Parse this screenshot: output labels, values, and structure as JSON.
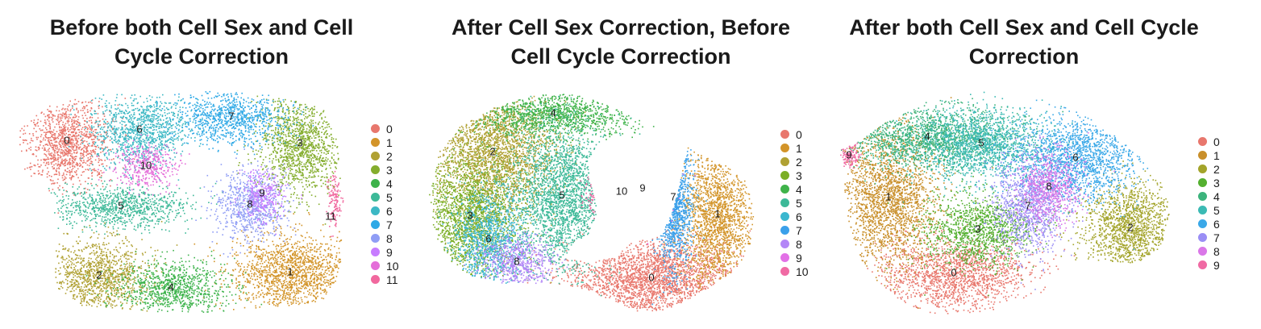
{
  "chart_data": [
    {
      "type": "scatter",
      "title": "Before both Cell Sex and Cell Cycle Correction",
      "title_lines": [
        "Before both Cell Sex and Cell",
        "Cycle Correction"
      ],
      "legend_position": "right",
      "grid": false,
      "axes": false,
      "series": [
        {
          "name": "0",
          "color": "#E8776D",
          "x": 83,
          "y": 175
        },
        {
          "name": "1",
          "color": "#D39429",
          "x": 360,
          "y": 338
        },
        {
          "name": "2",
          "color": "#B0A133",
          "x": 123,
          "y": 342
        },
        {
          "name": "3",
          "color": "#84AD2D",
          "x": 372,
          "y": 178
        },
        {
          "name": "4",
          "color": "#3DB34B",
          "x": 212,
          "y": 357
        },
        {
          "name": "5",
          "color": "#3DB998",
          "x": 150,
          "y": 256
        },
        {
          "name": "6",
          "color": "#3CB8C4",
          "x": 173,
          "y": 161
        },
        {
          "name": "7",
          "color": "#2FA9E6",
          "x": 287,
          "y": 145
        },
        {
          "name": "8",
          "color": "#8F9DF5",
          "x": 310,
          "y": 254
        },
        {
          "name": "9",
          "color": "#C77CFF",
          "x": 325,
          "y": 240
        },
        {
          "name": "10",
          "color": "#E46ED9",
          "x": 181,
          "y": 206
        },
        {
          "name": "11",
          "color": "#F1689E",
          "x": 410,
          "y": 269
        }
      ]
    },
    {
      "type": "scatter",
      "title": "After Cell Sex Correction, Before Cell Cycle Correction",
      "title_lines": [
        "After Cell Sex Correction, Before",
        "Cell Cycle Correction"
      ],
      "legend_position": "right",
      "grid": false,
      "axes": false,
      "series": [
        {
          "name": "0",
          "color": "#E8776D",
          "x": 808,
          "y": 345
        },
        {
          "name": "1",
          "color": "#D39429",
          "x": 890,
          "y": 266
        },
        {
          "name": "2",
          "color": "#B0A133",
          "x": 611,
          "y": 189
        },
        {
          "name": "3",
          "color": "#7BAE26",
          "x": 583,
          "y": 268
        },
        {
          "name": "4",
          "color": "#3FB34A",
          "x": 686,
          "y": 141
        },
        {
          "name": "5",
          "color": "#3DB998",
          "x": 697,
          "y": 243
        },
        {
          "name": "6",
          "color": "#3BB7CF",
          "x": 606,
          "y": 297
        },
        {
          "name": "7",
          "color": "#3AA0EA",
          "x": 835,
          "y": 245
        },
        {
          "name": "8",
          "color": "#B387F7",
          "x": 641,
          "y": 325
        },
        {
          "name": "9",
          "color": "#E271E6",
          "x": 797,
          "y": 234
        },
        {
          "name": "10",
          "color": "#F06AA4",
          "x": 771,
          "y": 238
        }
      ]
    },
    {
      "type": "scatter",
      "title": "After both Cell Sex and Cell Cycle Correction",
      "title_lines": [
        "After both Cell Sex and Cell Cycle",
        "Correction"
      ],
      "legend_position": "right",
      "grid": false,
      "axes": false,
      "series": [
        {
          "name": "0",
          "color": "#E8776D",
          "x": 1183,
          "y": 339
        },
        {
          "name": "1",
          "color": "#C98F2A",
          "x": 1102,
          "y": 245
        },
        {
          "name": "2",
          "color": "#A3A42A",
          "x": 1402,
          "y": 283
        },
        {
          "name": "3",
          "color": "#54B030",
          "x": 1213,
          "y": 285
        },
        {
          "name": "4",
          "color": "#3CB37C",
          "x": 1150,
          "y": 170
        },
        {
          "name": "5",
          "color": "#3BBAB4",
          "x": 1217,
          "y": 178
        },
        {
          "name": "6",
          "color": "#3AA8E8",
          "x": 1334,
          "y": 196
        },
        {
          "name": "7",
          "color": "#9A8EF5",
          "x": 1275,
          "y": 256
        },
        {
          "name": "8",
          "color": "#DA77E8",
          "x": 1301,
          "y": 232
        },
        {
          "name": "9",
          "color": "#F06AA4",
          "x": 1053,
          "y": 193
        }
      ]
    }
  ]
}
